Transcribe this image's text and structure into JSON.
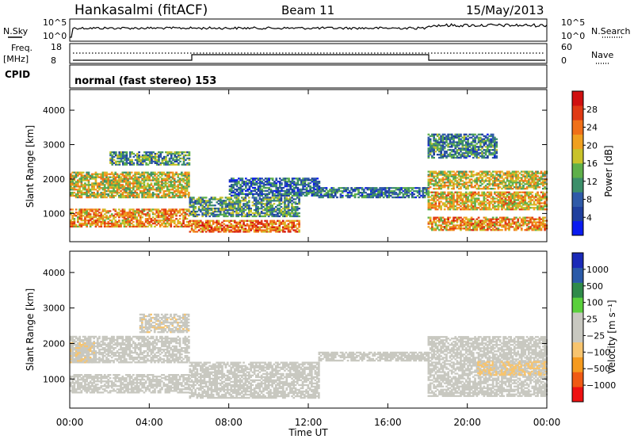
{
  "header": {
    "station": "Hankasalmi (fitACF)",
    "beam": "Beam 11",
    "date": "15/May/2013"
  },
  "panels": {
    "nsky_label": "N.Sky",
    "nsky_ticks": [
      "10^5",
      "10^0"
    ],
    "nsearch_label": "N.Search",
    "nsearch_ticks": [
      "10^5",
      "10^0"
    ],
    "freq_label_1": "Freq.",
    "freq_label_2": "[MHz]",
    "freq_ticks": [
      "18",
      "8"
    ],
    "nave_label": "Nave",
    "nave_ticks": [
      "60",
      "0"
    ],
    "cpid_label": "CPID",
    "cpid_text": "normal (fast stereo) 153"
  },
  "colors": {
    "power_scale": [
      "#0a1bf0",
      "#1f3f9e",
      "#2f5aa8",
      "#3c8f6a",
      "#5fb04a",
      "#c9c22a",
      "#f0a020",
      "#f07018",
      "#e03a14",
      "#d01010"
    ],
    "velocity_scale": [
      "#ee1111",
      "#f05a14",
      "#f59a1e",
      "#f7c46e",
      "#c8c8c0",
      "#c8c8c0",
      "#5ad03c",
      "#2f8a4a",
      "#2a5aa8",
      "#1a2ab8"
    ]
  },
  "chart_data": [
    {
      "type": "heatmap",
      "title": "",
      "xlabel": "Time UT",
      "ylabel": "Slant Range [km]",
      "xlim": [
        "00:00",
        "24:00"
      ],
      "x_ticks": [
        "00:00",
        "04:00",
        "08:00",
        "12:00",
        "16:00",
        "20:00",
        "00:00"
      ],
      "ylim": [
        180,
        4600
      ],
      "y_ticks": [
        1000,
        2000,
        3000,
        4000
      ],
      "colorbar_label": "Power [dB]",
      "colorbar_ticks": [
        "28",
        "24",
        "20",
        "16",
        "12",
        "8",
        "4"
      ],
      "colorbar_range": [
        0,
        32
      ],
      "echo_regions": [
        {
          "t0": 0.0,
          "t1": 6.0,
          "r0": 600,
          "r1": 1100,
          "level": 22
        },
        {
          "t0": 0.0,
          "t1": 6.0,
          "r0": 1450,
          "r1": 2200,
          "level": 18
        },
        {
          "t0": 2.0,
          "t1": 6.0,
          "r0": 2400,
          "r1": 2800,
          "level": 12
        },
        {
          "t0": 6.0,
          "t1": 11.5,
          "r0": 450,
          "r1": 800,
          "level": 24
        },
        {
          "t0": 6.0,
          "t1": 11.5,
          "r0": 900,
          "r1": 1450,
          "level": 12
        },
        {
          "t0": 8.0,
          "t1": 12.5,
          "r0": 1500,
          "r1": 2000,
          "level": 8
        },
        {
          "t0": 12.5,
          "t1": 18.0,
          "r0": 1450,
          "r1": 1750,
          "level": 9
        },
        {
          "t0": 18.0,
          "t1": 24.0,
          "r0": 500,
          "r1": 900,
          "level": 22
        },
        {
          "t0": 18.0,
          "t1": 24.0,
          "r0": 1100,
          "r1": 1600,
          "level": 20
        },
        {
          "t0": 18.0,
          "t1": 24.0,
          "r0": 1700,
          "r1": 2200,
          "level": 18
        },
        {
          "t0": 18.0,
          "t1": 21.5,
          "r0": 2600,
          "r1": 3300,
          "level": 10
        }
      ]
    },
    {
      "type": "heatmap",
      "title": "",
      "xlabel": "Time UT",
      "ylabel": "Slant Range [km]",
      "xlim": [
        "00:00",
        "24:00"
      ],
      "x_ticks": [
        "00:00",
        "04:00",
        "08:00",
        "12:00",
        "16:00",
        "20:00",
        "00:00"
      ],
      "ylim": [
        180,
        4600
      ],
      "y_ticks": [
        1000,
        2000,
        3000,
        4000
      ],
      "colorbar_label": "Velocity [m s⁻¹]",
      "colorbar_ticks": [
        "1000",
        "500",
        "100",
        "25",
        "−25",
        "−100",
        "−500",
        "−1000"
      ],
      "colorbar_range": [
        -1200,
        1200
      ],
      "echo_regions": [
        {
          "t0": 0.0,
          "t1": 6.0,
          "r0": 600,
          "r1": 1100,
          "level": 0
        },
        {
          "t0": 0.0,
          "t1": 6.0,
          "r0": 1450,
          "r1": 2200,
          "level": -10
        },
        {
          "t0": 0.0,
          "t1": 1.2,
          "r0": 1450,
          "r1": 2000,
          "level": -200
        },
        {
          "t0": 3.5,
          "t1": 6.0,
          "r0": 2300,
          "r1": 2800,
          "level": -180
        },
        {
          "t0": 6.0,
          "t1": 12.5,
          "r0": 450,
          "r1": 1450,
          "level": 0
        },
        {
          "t0": 12.5,
          "t1": 18.0,
          "r0": 1500,
          "r1": 1750,
          "level": 0
        },
        {
          "t0": 18.0,
          "t1": 24.0,
          "r0": 500,
          "r1": 2200,
          "level": 0
        },
        {
          "t0": 20.5,
          "t1": 24.0,
          "r0": 1100,
          "r1": 1500,
          "level": -250
        }
      ]
    }
  ]
}
